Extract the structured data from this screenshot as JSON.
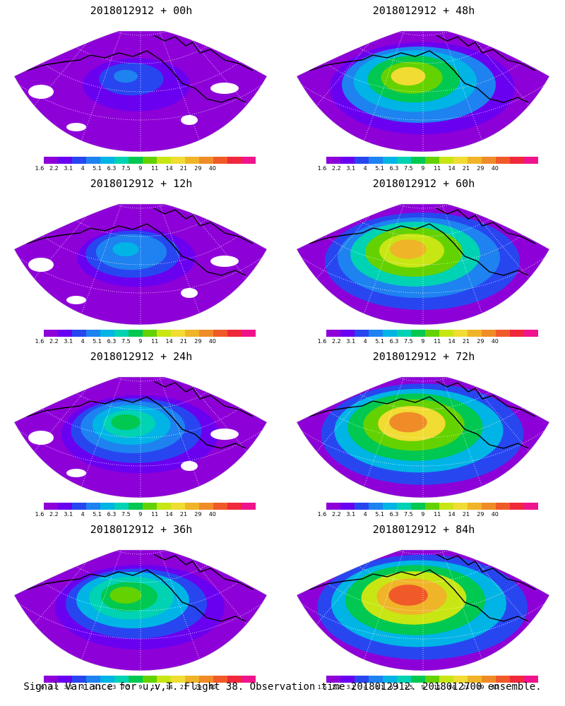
{
  "panels": [
    {
      "title": "2018012912 + 00h",
      "level": 0.18
    },
    {
      "title": "2018012912 + 48h",
      "level": 0.62
    },
    {
      "title": "2018012912 + 12h",
      "level": 0.28
    },
    {
      "title": "2018012912 + 60h",
      "level": 0.7
    },
    {
      "title": "2018012912 + 24h",
      "level": 0.4
    },
    {
      "title": "2018012912 + 72h",
      "level": 0.76
    },
    {
      "title": "2018012912 + 36h",
      "level": 0.5
    },
    {
      "title": "2018012912 + 84h",
      "level": 0.82
    }
  ],
  "colorbar": {
    "colors": [
      "#8e00d8",
      "#6a00f0",
      "#2846f0",
      "#1e82f0",
      "#00b4e6",
      "#00d2b4",
      "#00c850",
      "#64d200",
      "#c8e614",
      "#f0dc32",
      "#f0b428",
      "#f08c28",
      "#f05a28",
      "#f0283c",
      "#f0148c"
    ],
    "tick_labels": [
      "1.6",
      "2.2",
      "3.1",
      "4",
      "5.1",
      "6.3",
      "7.5",
      "9",
      "11",
      "14",
      "21",
      "29",
      "40"
    ]
  },
  "caption": "Signal Variance for u,v,T. Flight 38. Observation time 2018012912. 2018012700 ensemble."
}
